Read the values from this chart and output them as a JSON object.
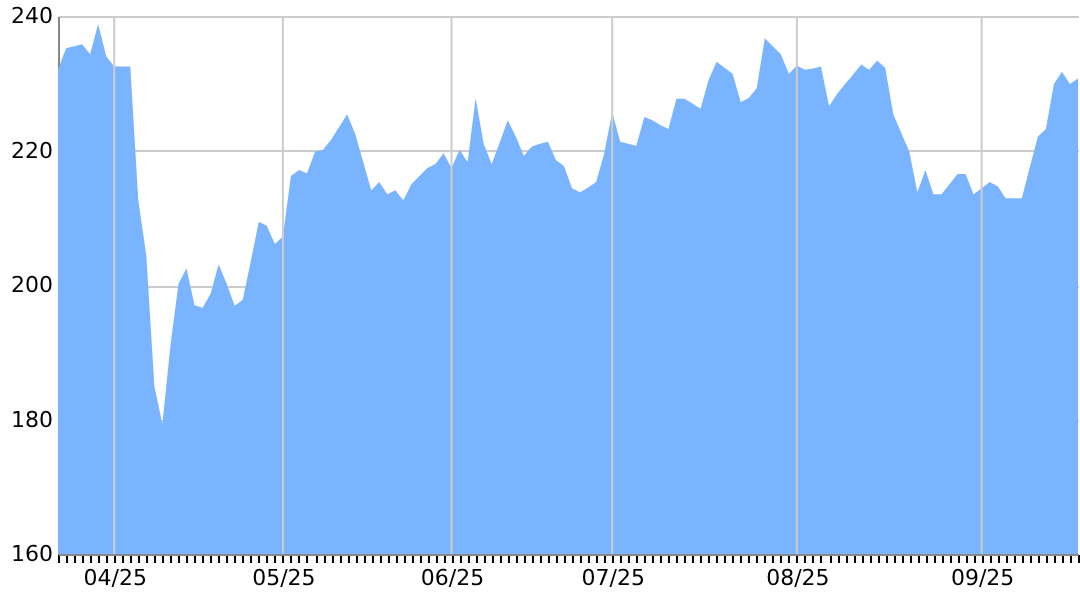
{
  "chart_data": {
    "type": "area",
    "color": "#7ab4ff",
    "categories": [
      null,
      null,
      null,
      null,
      null,
      null,
      null,
      "04/25",
      null,
      null,
      null,
      null,
      null,
      null,
      null,
      null,
      null,
      null,
      null,
      null,
      null,
      null,
      null,
      null,
      null,
      null,
      null,
      null,
      "05/25",
      null,
      null,
      null,
      null,
      null,
      null,
      null,
      null,
      null,
      null,
      null,
      null,
      null,
      null,
      null,
      null,
      null,
      null,
      null,
      null,
      "06/25",
      null,
      null,
      null,
      null,
      null,
      null,
      null,
      null,
      null,
      null,
      null,
      null,
      null,
      null,
      null,
      null,
      null,
      null,
      null,
      "07/25",
      null,
      null,
      null,
      null,
      null,
      null,
      null,
      null,
      null,
      null,
      null,
      null,
      null,
      null,
      null,
      null,
      null,
      null,
      null,
      null,
      null,
      null,
      "08/25",
      null,
      null,
      null,
      null,
      null,
      null,
      null,
      null,
      null,
      null,
      null,
      null,
      null,
      null,
      null,
      null,
      null,
      null,
      null,
      null,
      null,
      null,
      "09/25",
      null,
      null,
      null,
      null,
      null,
      null,
      null,
      null,
      null,
      null,
      null,
      null
    ],
    "values": [
      232,
      235.2,
      235.5,
      235.8,
      234.3,
      238.8,
      234,
      232.5,
      232.5,
      232.5,
      212.6,
      204.3,
      185,
      179.3,
      191,
      200.2,
      202.5,
      197,
      196.6,
      198.7,
      203.1,
      200.2,
      196.9,
      197.8,
      203.5,
      209.4,
      208.8,
      206.1,
      207.2,
      216.2,
      217.1,
      216.6,
      219.8,
      220.1,
      221.6,
      223.5,
      225.4,
      222.5,
      218.3,
      214.1,
      215.3,
      213.5,
      214.1,
      212.6,
      215,
      216.2,
      217.4,
      218,
      219.6,
      217.4,
      220.1,
      218.3,
      227.8,
      221,
      218,
      221.2,
      224.5,
      222.1,
      219.2,
      220.6,
      221,
      221.3,
      218.6,
      217.7,
      214.4,
      213.8,
      214.5,
      215.3,
      219.5,
      225.7,
      221.3,
      221,
      220.7,
      225,
      224.5,
      223.8,
      223.2,
      227.7,
      227.7,
      227,
      226.2,
      230.5,
      233.2,
      232.3,
      231.4,
      227.2,
      227.8,
      229.3,
      236.7,
      235.5,
      234.3,
      231.4,
      232.6,
      232,
      232.2,
      232.5,
      226.6,
      228.4,
      229.9,
      231.3,
      232.8,
      232,
      233.4,
      232.3,
      225.4,
      222.6,
      219.8,
      213.8,
      217.1,
      213.5,
      213.5,
      215,
      216.5,
      216.5,
      213.5,
      214.4,
      215.3,
      214.7,
      212.9,
      212.9,
      212.9,
      217.5,
      222.1,
      223.2,
      229.9,
      231.7,
      229.9,
      230.7
    ],
    "ylim": [
      160,
      240
    ],
    "yticks": [
      160,
      180,
      200,
      220,
      240
    ],
    "grid": true
  }
}
